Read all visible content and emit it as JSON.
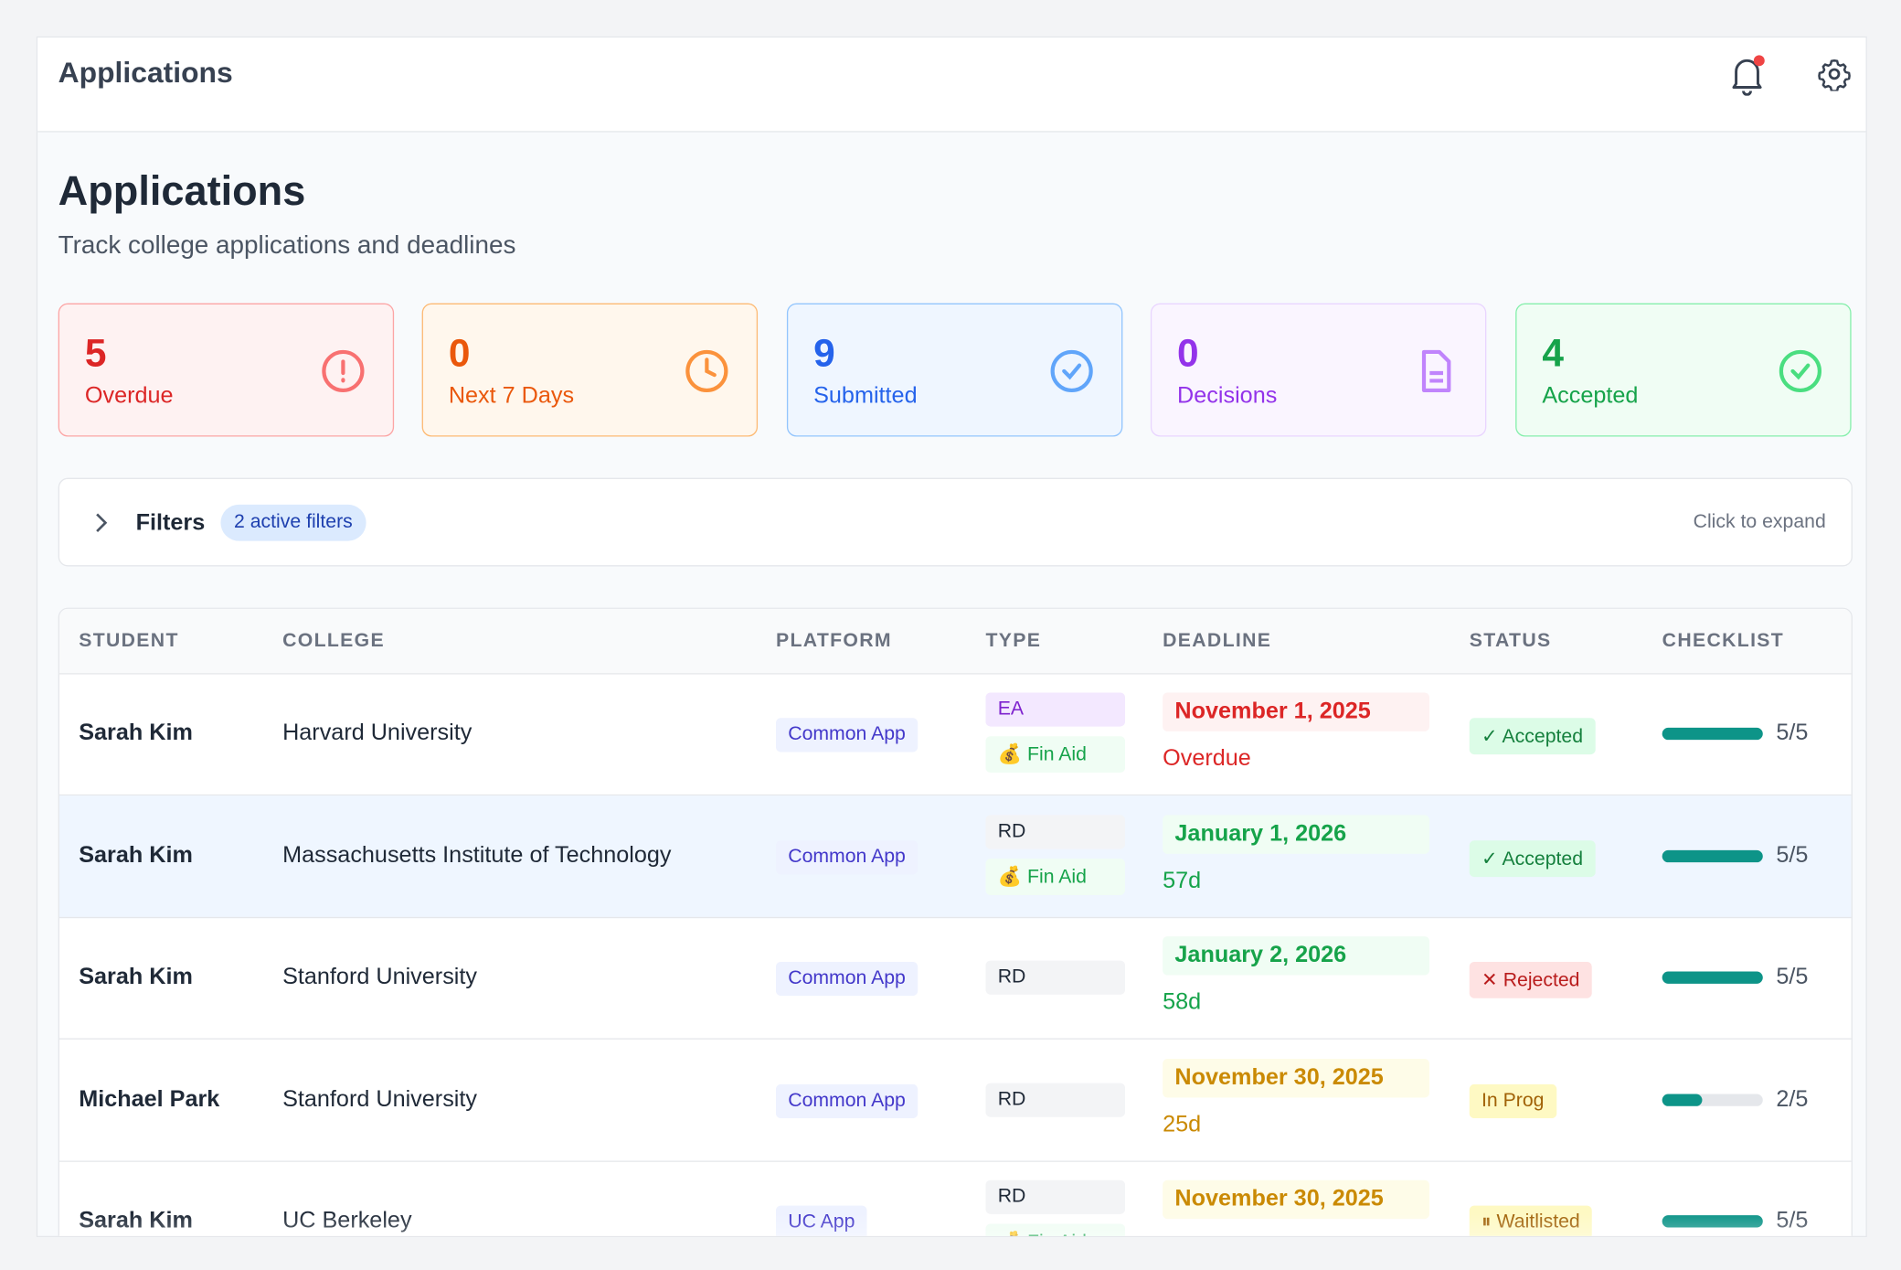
{
  "header": {
    "title": "Applications"
  },
  "page": {
    "title": "Applications",
    "subtitle": "Track college applications and deadlines"
  },
  "stats": [
    {
      "value": "5",
      "label": "Overdue"
    },
    {
      "value": "0",
      "label": "Next 7 Days"
    },
    {
      "value": "9",
      "label": "Submitted"
    },
    {
      "value": "0",
      "label": "Decisions"
    },
    {
      "value": "4",
      "label": "Accepted"
    }
  ],
  "filters": {
    "label": "Filters",
    "badge": "2 active filters",
    "hint": "Click to expand"
  },
  "table": {
    "columns": [
      "STUDENT",
      "COLLEGE",
      "PLATFORM",
      "TYPE",
      "DEADLINE",
      "STATUS",
      "CHECKLIST"
    ],
    "selected_row": 1,
    "rows": [
      {
        "student": "Sarah Kim",
        "college": "Harvard University",
        "platform": "Common App",
        "types": [
          {
            "label": "EA",
            "color": "purple"
          },
          {
            "label": "💰 Fin Aid",
            "color": "green"
          }
        ],
        "deadline": "November 1, 2025",
        "deadline_note": "Overdue",
        "deadline_color": "red",
        "status": "✓ Accepted",
        "status_color": "green",
        "checklist": "5/5"
      },
      {
        "student": "Sarah Kim",
        "college": "Massachusetts Institute of Technology",
        "platform": "Common App",
        "types": [
          {
            "label": "RD",
            "color": "gray"
          },
          {
            "label": "💰 Fin Aid",
            "color": "green"
          }
        ],
        "deadline": "January 1, 2026",
        "deadline_note": "57d",
        "deadline_color": "green",
        "status": "✓ Accepted",
        "status_color": "green",
        "checklist": "5/5"
      },
      {
        "student": "Sarah Kim",
        "college": "Stanford University",
        "platform": "Common App",
        "types": [
          {
            "label": "RD",
            "color": "gray"
          }
        ],
        "deadline": "January 2, 2026",
        "deadline_note": "58d",
        "deadline_color": "green",
        "status": "✕ Rejected",
        "status_color": "red",
        "checklist": "5/5"
      },
      {
        "student": "Michael Park",
        "college": "Stanford University",
        "platform": "Common App",
        "types": [
          {
            "label": "RD",
            "color": "gray"
          }
        ],
        "deadline": "November 30, 2025",
        "deadline_note": "25d",
        "deadline_color": "yellow",
        "status": "In Prog",
        "status_color": "yellow",
        "checklist": "2/5"
      },
      {
        "student": "Sarah Kim",
        "college": "UC Berkeley",
        "platform": "UC App",
        "types": [
          {
            "label": "RD",
            "color": "gray"
          },
          {
            "label": "💰 Fin Aid",
            "color": "green"
          }
        ],
        "deadline": "November 30, 2025",
        "deadline_color": "yellow",
        "status": "⏸ Waitlisted",
        "status_color": "yellow",
        "checklist": "5/5"
      }
    ]
  }
}
